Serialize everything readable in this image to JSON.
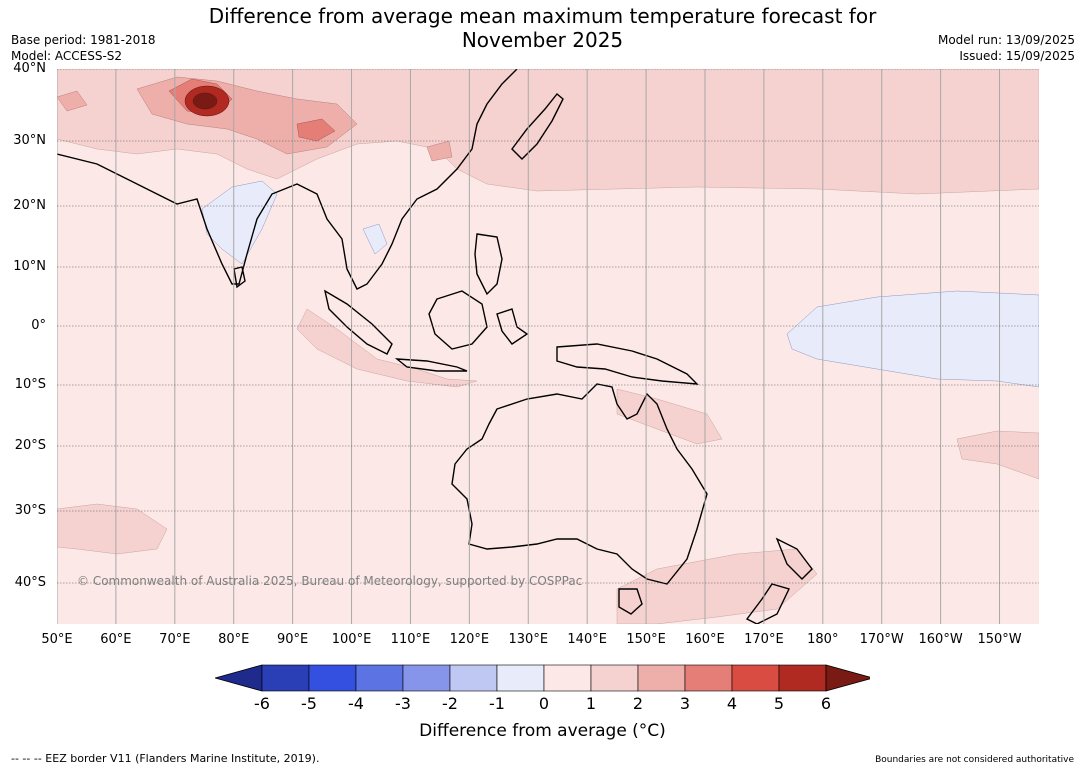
{
  "title": {
    "line1": "Difference from average mean maximum temperature forecast for",
    "line2": "November 2025"
  },
  "meta": {
    "base_period": "Base period: 1981-2018",
    "model": "Model: ACCESS-S2",
    "model_run": "Model run: 13/09/2025",
    "issued": "Issued: 15/09/2025"
  },
  "map": {
    "lat_labels": [
      "40°N",
      "30°N",
      "20°N",
      "10°N",
      "0°",
      "10°S",
      "20°S",
      "30°S",
      "40°S"
    ],
    "lat_values": [
      40,
      30,
      20,
      10,
      0,
      -10,
      -20,
      -30,
      -40
    ],
    "lon_labels": [
      "50°E",
      "60°E",
      "70°E",
      "80°E",
      "90°E",
      "100°E",
      "110°E",
      "120°E",
      "130°E",
      "140°E",
      "150°E",
      "160°E",
      "170°E",
      "180°",
      "170°W",
      "160°W",
      "150°W"
    ],
    "lon_values": [
      50,
      60,
      70,
      80,
      90,
      100,
      110,
      120,
      130,
      140,
      150,
      160,
      170,
      180,
      190,
      200,
      210
    ],
    "watermark": "© Commonwealth of Australia 2025, Bureau of Meteorology, supported by COSPPac",
    "background_color": "#fce9e7"
  },
  "colorbar": {
    "ticks": [
      "-6",
      "-5",
      "-4",
      "-3",
      "-2",
      "-1",
      "0",
      "1",
      "2",
      "3",
      "4",
      "5",
      "6"
    ],
    "colors": [
      "#1e2a8c",
      "#2a3fb5",
      "#3350e0",
      "#5c73e4",
      "#8695ea",
      "#bfc7f3",
      "#e8ebfa",
      "#fce9e7",
      "#f5d2cf",
      "#eeaeaa",
      "#e67e78",
      "#d84c42",
      "#b02a22",
      "#7a1a14"
    ],
    "title": "Difference from average ($^\\circ$C)",
    "title_display": "Difference from average (°C)"
  },
  "footer": {
    "eez": "--  --  -- EEZ border V11 (Flanders Marine Institute, 2019).",
    "disclaimer": "Boundaries are not considered authoritative"
  }
}
